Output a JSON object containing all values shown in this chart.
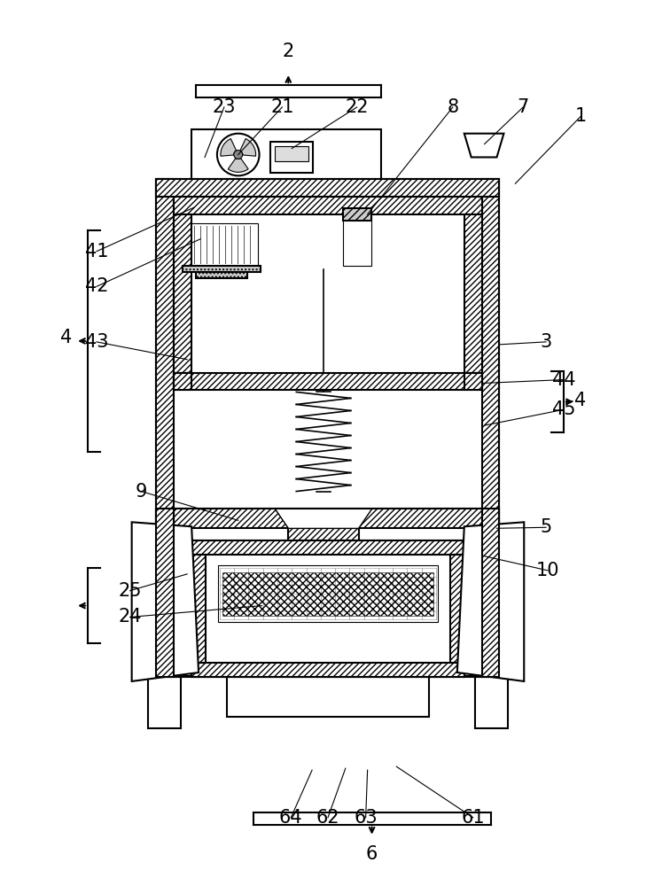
{
  "bg_color": "#ffffff",
  "line_color": "#000000",
  "fig_width": 7.3,
  "fig_height": 10.0
}
